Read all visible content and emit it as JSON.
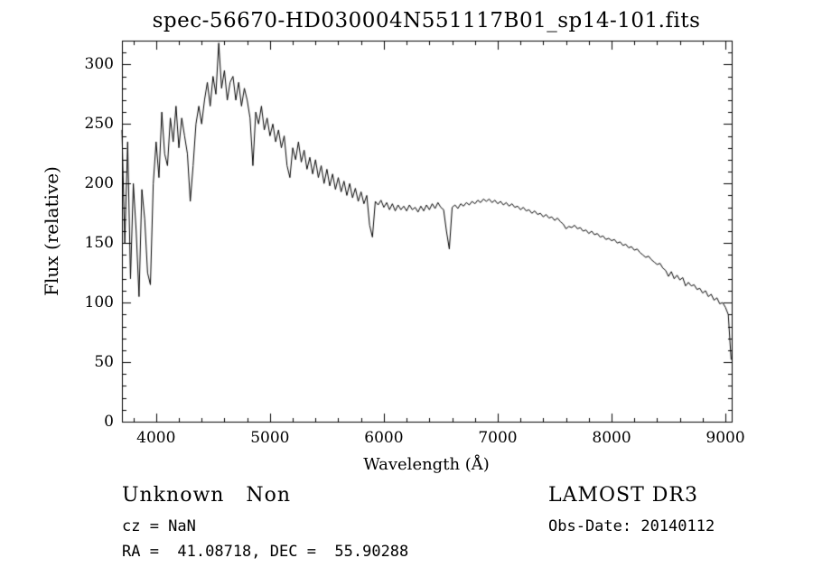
{
  "page": {
    "background": "#ffffff",
    "foreground": "#000000"
  },
  "annotations": {
    "classification": "Unknown   Non",
    "survey": "LAMOST DR3",
    "cz": "cz = NaN",
    "obs_date": "Obs-Date: 20140112",
    "ra_dec": "RA =  41.08718, DEC =  55.90288"
  },
  "chart_data": {
    "type": "line",
    "title": "spec-56670-HD030004N551117B01_sp14-101.fits",
    "xlabel": "Wavelength (Å)",
    "ylabel": "Flux (relative)",
    "xlim": [
      3700,
      9055
    ],
    "ylim": [
      0,
      320
    ],
    "xticks": [
      4000,
      5000,
      6000,
      7000,
      8000,
      9000
    ],
    "yticks": [
      0,
      50,
      100,
      150,
      200,
      250,
      300
    ],
    "x_minor_step": 200,
    "y_minor_step": 10,
    "grid": false,
    "legend": "none",
    "line_color": "#000000",
    "x_start": 3700,
    "x_step": 25,
    "flux": [
      245,
      150,
      235,
      120,
      200,
      160,
      105,
      195,
      170,
      125,
      115,
      200,
      235,
      205,
      260,
      225,
      215,
      255,
      235,
      265,
      230,
      255,
      240,
      225,
      185,
      215,
      250,
      265,
      250,
      270,
      285,
      265,
      290,
      275,
      318,
      280,
      295,
      270,
      285,
      290,
      270,
      285,
      265,
      280,
      270,
      255,
      215,
      260,
      250,
      265,
      245,
      255,
      240,
      250,
      235,
      245,
      230,
      240,
      215,
      205,
      230,
      220,
      235,
      218,
      228,
      212,
      222,
      208,
      220,
      205,
      215,
      200,
      212,
      198,
      208,
      195,
      205,
      193,
      202,
      190,
      200,
      188,
      196,
      185,
      193,
      183,
      190,
      165,
      155,
      185,
      182,
      186,
      180,
      184,
      178,
      183,
      177,
      182,
      178,
      181,
      177,
      182,
      178,
      180,
      176,
      181,
      177,
      182,
      178,
      183,
      179,
      184,
      180,
      178,
      160,
      145,
      180,
      182,
      179,
      183,
      181,
      184,
      182,
      185,
      183,
      186,
      184,
      187,
      185,
      187,
      184,
      186,
      183,
      185,
      182,
      184,
      181,
      183,
      180,
      181,
      178,
      180,
      177,
      178,
      175,
      177,
      174,
      175,
      172,
      174,
      171,
      172,
      169,
      171,
      168,
      166,
      162,
      164,
      163,
      165,
      162,
      163,
      160,
      161,
      158,
      160,
      157,
      158,
      155,
      156,
      153,
      154,
      152,
      153,
      150,
      151,
      148,
      149,
      146,
      147,
      144,
      145,
      142,
      140,
      138,
      139,
      136,
      134,
      132,
      133,
      129,
      127,
      122,
      126,
      120,
      123,
      119,
      121,
      114,
      117,
      114,
      115,
      111,
      112,
      108,
      110,
      105,
      107,
      102,
      104,
      99,
      100,
      96,
      90,
      52
    ]
  }
}
